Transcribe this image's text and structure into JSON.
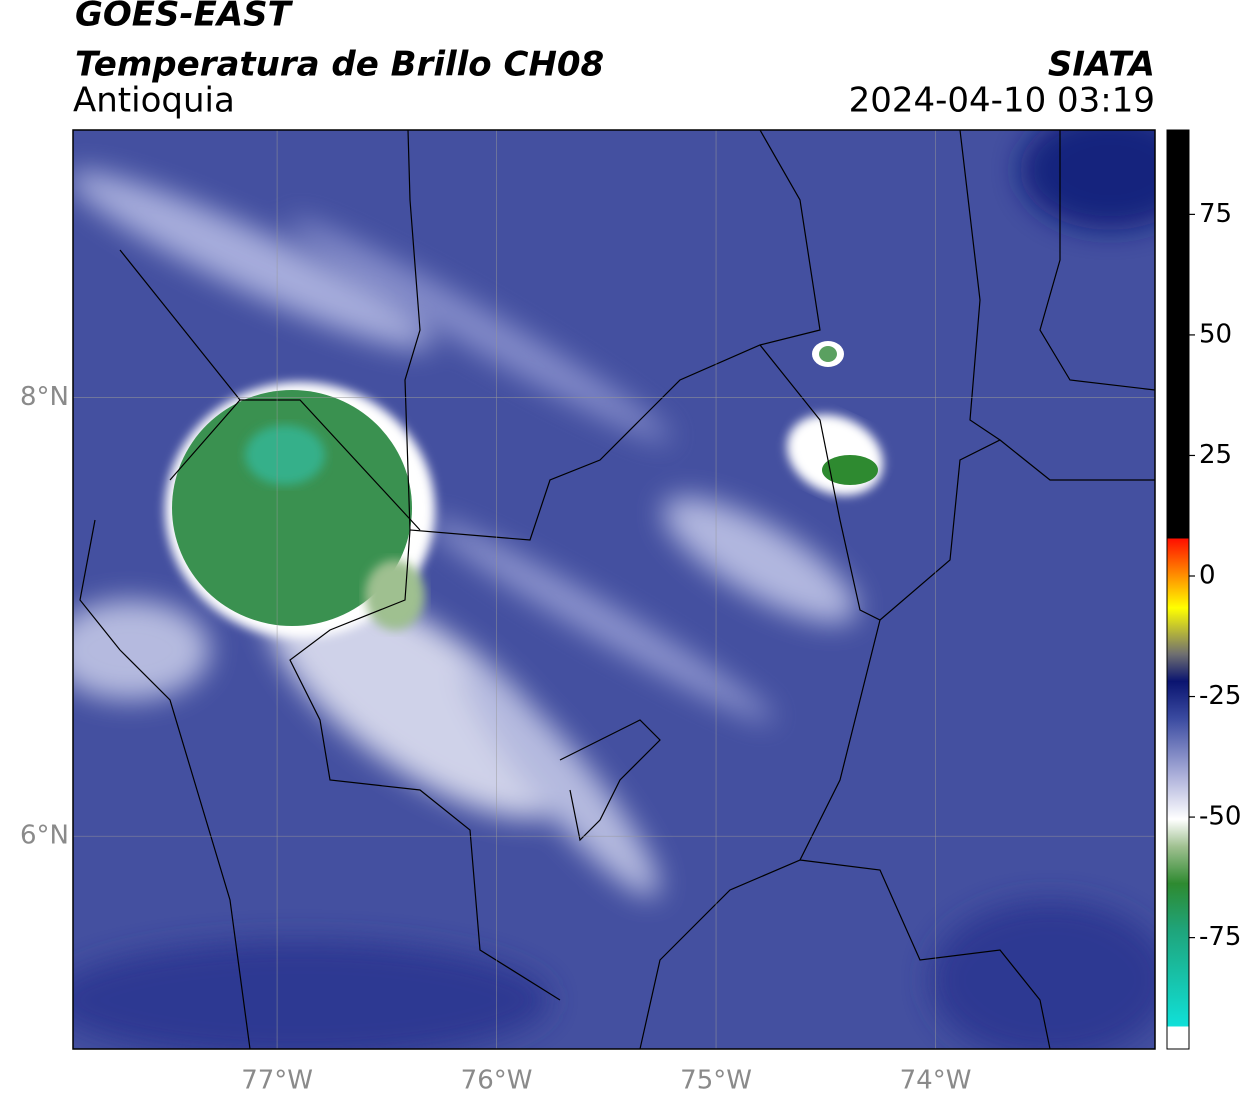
{
  "header": {
    "title": "GOES-EAST",
    "subtitle": "Temperatura de Brillo CH08",
    "region": "Antioquia",
    "source": "SIATA",
    "datetime": "2024-04-10 03:19"
  },
  "map": {
    "xlim": [
      -77.93,
      -73.0
    ],
    "ylim": [
      5.03,
      9.22
    ],
    "xticks": [
      {
        "value": -77,
        "label": "77°W"
      },
      {
        "value": -76,
        "label": "76°W"
      },
      {
        "value": -75,
        "label": "75°W"
      },
      {
        "value": -74,
        "label": "74°W"
      }
    ],
    "yticks": [
      {
        "value": 6,
        "label": "6°N"
      },
      {
        "value": 8,
        "label": "8°N"
      }
    ],
    "grid": true
  },
  "colorbar": {
    "lim": [
      -98.1,
      92.5
    ],
    "ticks": [
      -75,
      -50,
      -25,
      0,
      25,
      50,
      75
    ]
  }
}
